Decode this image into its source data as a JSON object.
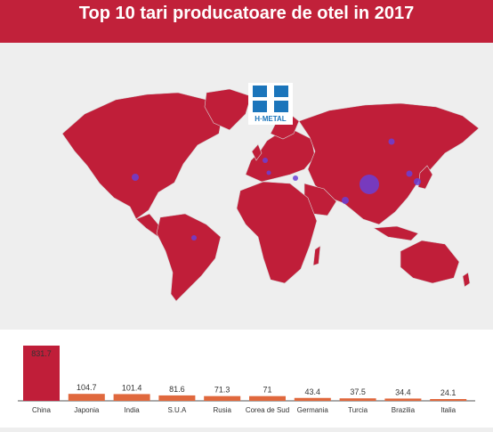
{
  "header": {
    "title": "Top 10 tari producatoare de otel in 2017"
  },
  "logo": {
    "text": "H·METAL"
  },
  "colors": {
    "header": "#c1213a",
    "land": "#c01e39",
    "bubble": "#6a3fd6",
    "bar_top": "#c01e39",
    "bar_rest": "#e0683d"
  },
  "chart_data": {
    "type": "bar",
    "categories": [
      "China",
      "Japonia",
      "India",
      "S.U.A",
      "Rusia",
      "Corea de Sud",
      "Germania",
      "Turcia",
      "Brazilia",
      "Italia"
    ],
    "values": [
      831.7,
      104.7,
      101.4,
      81.6,
      71.3,
      71,
      43.4,
      37.5,
      34.4,
      24.1
    ],
    "value_labels": [
      "831.7",
      "104.7",
      "101.4",
      "81.6",
      "71.3",
      "71",
      "43.4",
      "37.5",
      "34.4",
      "24.1"
    ],
    "ylim": [
      0,
      831.7
    ]
  }
}
